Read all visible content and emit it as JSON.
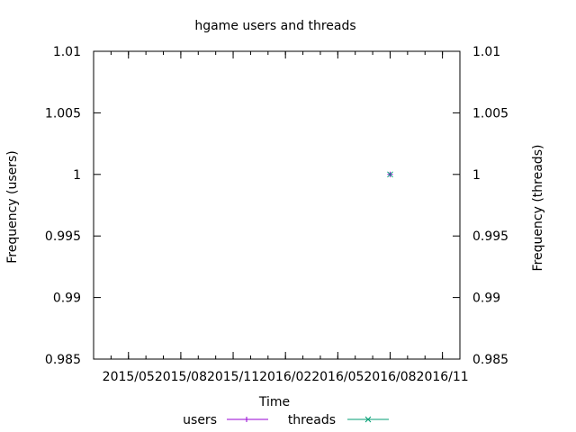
{
  "chart_data": {
    "type": "scatter",
    "title": "hgame users and threads",
    "xlabel": "Time",
    "ylabel_left": "Frequency (users)",
    "ylabel_right": "Frequency (threads)",
    "x_ticks": [
      "2015/05",
      "2015/08",
      "2015/11",
      "2016/02",
      "2016/05",
      "2016/08",
      "2016/11"
    ],
    "x_range": [
      "2015/03",
      "2016/12"
    ],
    "ylim": [
      0.985,
      1.01
    ],
    "y_ticks": [
      0.985,
      0.99,
      0.995,
      1,
      1.005,
      1.01
    ],
    "y_tick_labels": [
      "0.985",
      "0.99",
      "0.995",
      "1",
      "1.005",
      "1.01"
    ],
    "grid": false,
    "legend_position": "bottom-center",
    "series": [
      {
        "name": "users",
        "color": "#9400d3",
        "marker": "plus",
        "points": [
          {
            "x": "2016/08",
            "y": 1
          }
        ]
      },
      {
        "name": "threads",
        "color": "#009e73",
        "marker": "cross",
        "points": [
          {
            "x": "2016/08",
            "y": 1
          }
        ]
      }
    ]
  }
}
